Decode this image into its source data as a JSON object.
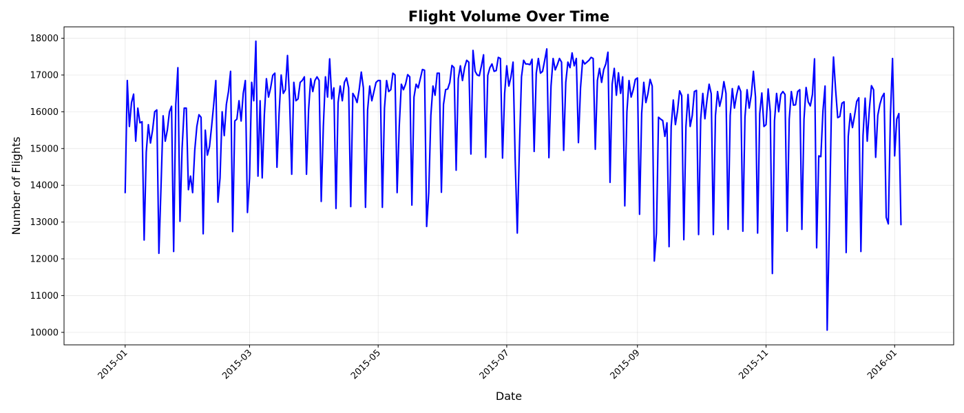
{
  "chart_data": {
    "type": "line",
    "title": "Flight Volume Over Time",
    "xlabel": "Date",
    "ylabel": "Number of Flights",
    "xlim": [
      "2014-12-03",
      "2016-01-29"
    ],
    "ylim": [
      9660,
      18310
    ],
    "yticks": [
      10000,
      11000,
      12000,
      13000,
      14000,
      15000,
      16000,
      17000,
      18000
    ],
    "xticks": [
      "2015-01-01",
      "2015-03-01",
      "2015-05-01",
      "2015-07-01",
      "2015-09-01",
      "2015-11-01",
      "2016-01-01"
    ],
    "xtick_labels": [
      "2015-01",
      "2015-03",
      "2015-05",
      "2015-07",
      "2015-09",
      "2015-11",
      "2016-01"
    ],
    "grid": true,
    "series": [
      {
        "color": "#0000ff",
        "x_start": "2015-01-01",
        "x_step": "1 day",
        "values": [
          13800,
          16850,
          15600,
          16250,
          16480,
          15200,
          16100,
          15700,
          15730,
          12510,
          14900,
          15650,
          15150,
          15500,
          16000,
          16050,
          12150,
          13950,
          15890,
          15200,
          15500,
          16000,
          16150,
          12200,
          16200,
          17200,
          13020,
          15000,
          16100,
          16100,
          13880,
          14250,
          13800,
          14950,
          15600,
          15920,
          15850,
          12680,
          15500,
          14820,
          15050,
          15600,
          16200,
          16850,
          13540,
          14200,
          16000,
          15350,
          16200,
          16550,
          17100,
          12740,
          15750,
          15800,
          16300,
          15750,
          16500,
          16850,
          13260,
          14200,
          16800,
          16300,
          17920,
          14250,
          16300,
          14200,
          15900,
          16900,
          16400,
          16650,
          16990,
          17050,
          14490,
          15950,
          17000,
          16500,
          16600,
          17530,
          16300,
          14300,
          16800,
          16300,
          16350,
          16800,
          16850,
          16950,
          14300,
          16050,
          16900,
          16550,
          16850,
          16950,
          16850,
          13560,
          15600,
          16950,
          16400,
          17440,
          16350,
          16650,
          13370,
          16250,
          16700,
          16300,
          16800,
          16920,
          16650,
          13420,
          16500,
          16400,
          16250,
          16600,
          17080,
          16650,
          13400,
          16050,
          16700,
          16300,
          16550,
          16800,
          16850,
          16850,
          13400,
          16100,
          16850,
          16550,
          16600,
          17050,
          17000,
          13800,
          15600,
          16750,
          16600,
          16750,
          17010,
          16950,
          13460,
          16400,
          16750,
          16650,
          16900,
          17150,
          17130,
          12880,
          13800,
          15900,
          16700,
          16450,
          17050,
          17050,
          13810,
          16200,
          16600,
          16620,
          16800,
          17260,
          17200,
          14410,
          16900,
          17250,
          16850,
          17200,
          17400,
          17350,
          14850,
          17670,
          17100,
          17000,
          16980,
          17250,
          17550,
          14760,
          16990,
          17200,
          17300,
          17100,
          17120,
          17480,
          17450,
          14740,
          16500,
          17250,
          16700,
          16950,
          17350,
          14700,
          12700,
          15000,
          16950,
          17400,
          17300,
          17300,
          17280,
          17430,
          14920,
          17050,
          17450,
          17050,
          17100,
          17400,
          17710,
          14750,
          16700,
          17450,
          17140,
          17280,
          17450,
          17350,
          14950,
          16800,
          17350,
          17200,
          17600,
          17250,
          17450,
          15160,
          16650,
          17400,
          17300,
          17350,
          17400,
          17480,
          17450,
          14980,
          16850,
          17180,
          16800,
          17150,
          17300,
          17620,
          14080,
          16750,
          17180,
          16450,
          17060,
          16500,
          16950,
          13440,
          16000,
          16850,
          16400,
          16600,
          16880,
          16920,
          13210,
          15950,
          16800,
          16250,
          16500,
          16880,
          16700,
          11940,
          12700,
          15850,
          15800,
          15760,
          15330,
          15700,
          12330,
          15600,
          16320,
          15650,
          16020,
          16570,
          16440,
          12520,
          15600,
          16470,
          15600,
          15900,
          16550,
          16580,
          12660,
          15800,
          16500,
          15810,
          16330,
          16750,
          16490,
          12660,
          15900,
          16550,
          16150,
          16400,
          16820,
          16500,
          12800,
          15900,
          16630,
          16100,
          16450,
          16700,
          16550,
          12750,
          15850,
          16600,
          16100,
          16460,
          17100,
          16400,
          12700,
          15950,
          16510,
          15600,
          15650,
          16620,
          16000,
          11600,
          15750,
          16500,
          16000,
          16470,
          16550,
          16470,
          12750,
          15800,
          16550,
          16180,
          16190,
          16550,
          16600,
          12800,
          15800,
          16660,
          16270,
          16160,
          16470,
          17440,
          12300,
          14800,
          14780,
          16030,
          16700,
          10060,
          12800,
          16050,
          17490,
          16600,
          15840,
          15870,
          16230,
          16270,
          12170,
          15330,
          15950,
          15570,
          15900,
          16280,
          16380,
          12200,
          15350,
          16370,
          15200,
          16070,
          16710,
          16600,
          14760,
          15900,
          16200,
          16400,
          16500,
          13130,
          12950,
          15900,
          17450,
          14800,
          15800,
          15950,
          12930
        ]
      }
    ]
  }
}
